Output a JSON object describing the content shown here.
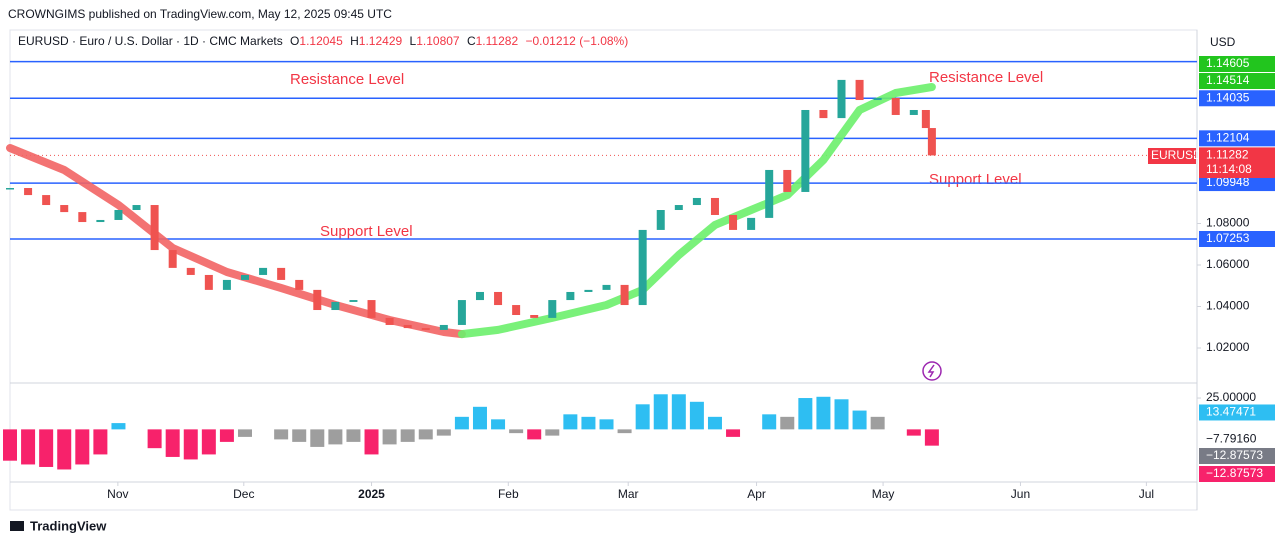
{
  "header": "CROWNGIMS published on TradingView.com, May 12, 2025 09:45 UTC",
  "footer": "TradingView",
  "chart_data": {
    "type": "candlestick",
    "symbol_line": {
      "name": "EURUSD · Euro / U.S. Dollar · 1D · CMC Markets",
      "o_label": "O",
      "open": 1.12045,
      "h_label": "H",
      "high": 1.12429,
      "l_label": "L",
      "low": 1.10807,
      "c_label": "C",
      "close": 1.11282,
      "change": "−0.01212 (−1.08%)"
    },
    "currency": "USD",
    "symbol_tag": "EURUSD",
    "countdown": "11:14:08",
    "annotations": [
      {
        "text": "Resistance Level"
      },
      {
        "text": "Resistance Level"
      },
      {
        "text": "Support Level"
      },
      {
        "text": "Support Level"
      }
    ],
    "xlim": [
      0,
      197
    ],
    "xticks": [
      {
        "value": 17.9,
        "label": "Nov"
      },
      {
        "value": 38.8,
        "label": "Dec"
      },
      {
        "value": 60,
        "label": "2025"
      },
      {
        "value": 82.7,
        "label": "Feb"
      },
      {
        "value": 102.6,
        "label": "Mar"
      },
      {
        "value": 123.9,
        "label": "Apr"
      },
      {
        "value": 144.9,
        "label": "May"
      },
      {
        "value": 167.7,
        "label": "Jun"
      },
      {
        "value": 188.6,
        "label": "Jul"
      }
    ],
    "ylim": [
      1.00313,
      1.17325
    ],
    "yticks": [
      {
        "value": 1.02,
        "label": "1.02000"
      },
      {
        "value": 1.04,
        "label": "1.04000"
      },
      {
        "value": 1.06,
        "label": "1.06000"
      },
      {
        "value": 1.08,
        "label": "1.08000"
      }
    ],
    "up_color": "#26a69a",
    "down_color": "#ef5350",
    "x": [
      0,
      3,
      6,
      9,
      12,
      15,
      18,
      21,
      24,
      27,
      30,
      33,
      36,
      39,
      42,
      45,
      48,
      51,
      54,
      57,
      60,
      63,
      66,
      69,
      72,
      75,
      78,
      81,
      84,
      87,
      90,
      93,
      96,
      99,
      102,
      105,
      108,
      111,
      114,
      117,
      120,
      123,
      126,
      129,
      132,
      135,
      138,
      141,
      144,
      147,
      150,
      152,
      153
    ],
    "close": [
      1.0971,
      1.0937,
      1.0889,
      1.0855,
      1.0807,
      1.0817,
      1.0865,
      1.0889,
      1.0672,
      1.0586,
      1.0552,
      1.048,
      1.0528,
      1.0552,
      1.0586,
      1.0528,
      1.048,
      1.0383,
      1.0422,
      1.0431,
      1.0345,
      1.0311,
      1.0296,
      1.0287,
      1.0311,
      1.0431,
      1.047,
      1.0407,
      1.0359,
      1.0345,
      1.0431,
      1.047,
      1.048,
      1.0504,
      1.0407,
      1.0769,
      1.0865,
      1.0889,
      1.0923,
      1.0841,
      1.0769,
      1.0827,
      1.1058,
      1.0952,
      1.1347,
      1.1308,
      1.1492,
      1.1395,
      1.1405,
      1.1323,
      1.1347,
      1.126,
      1.11282
    ],
    "series": [
      {
        "name": "MA falling",
        "color": "#f26464",
        "x": [
          0,
          9,
          18,
          27,
          36,
          45,
          54,
          63,
          72,
          75
        ],
        "values": [
          1.1164,
          1.1058,
          1.0889,
          1.0682,
          1.0566,
          1.0489,
          1.0407,
          1.0335,
          1.0277,
          1.0267
        ]
      },
      {
        "name": "MA rising",
        "color": "#6cf06c",
        "x": [
          75,
          81,
          90,
          99,
          105,
          111,
          117,
          123,
          129,
          135,
          141,
          147,
          153
        ],
        "values": [
          1.0267,
          1.0287,
          1.0345,
          1.0407,
          1.048,
          1.0648,
          1.0793,
          1.0865,
          1.0937,
          1.1106,
          1.1347,
          1.1429,
          1.1458
        ]
      }
    ],
    "levels": [
      1.158,
      1.14035,
      1.12104,
      1.09948,
      1.07253
    ],
    "level_color": "#2962ff",
    "price_labels": [
      {
        "value": 1.14605,
        "color": "#22c51e"
      },
      {
        "value": 1.14514,
        "color": "#22c51e"
      },
      {
        "value": 1.11282,
        "color": "#f23645"
      }
    ],
    "oscillator": {
      "ylim": [
        -42,
        37
      ],
      "yticks": [
        {
          "value": 25,
          "label": "25.00000"
        }
      ],
      "x": [
        0,
        3,
        6,
        9,
        12,
        15,
        18,
        21,
        24,
        27,
        30,
        33,
        36,
        39,
        42,
        45,
        48,
        51,
        54,
        57,
        60,
        63,
        66,
        69,
        72,
        75,
        78,
        81,
        84,
        87,
        90,
        93,
        96,
        99,
        102,
        105,
        108,
        111,
        114,
        117,
        120,
        123,
        126,
        129,
        132,
        135,
        138,
        141,
        144,
        147,
        150,
        153
      ],
      "values": [
        -25,
        -28,
        -30,
        -32,
        -28,
        -20,
        5,
        null,
        -15,
        -22,
        -24,
        -20,
        -10,
        -6,
        null,
        -8,
        -10,
        -14,
        -12,
        -10,
        -20,
        -12,
        -10,
        -8,
        -5,
        10,
        18,
        8,
        -3,
        -8,
        -5,
        12,
        10,
        8,
        -3,
        20,
        28,
        28,
        22,
        10,
        -6,
        null,
        12,
        10,
        25,
        26,
        24,
        15,
        10,
        null,
        -5,
        -13
      ],
      "colors": [
        "#f7226b",
        "#f7226b",
        "#f7226b",
        "#f7226b",
        "#f7226b",
        "#f7226b",
        "#2ebef2",
        "#9e9e9e",
        "#f7226b",
        "#f7226b",
        "#f7226b",
        "#f7226b",
        "#f7226b",
        "#9e9e9e",
        "#9e9e9e",
        "#9e9e9e",
        "#9e9e9e",
        "#9e9e9e",
        "#9e9e9e",
        "#9e9e9e",
        "#f7226b",
        "#9e9e9e",
        "#9e9e9e",
        "#9e9e9e",
        "#9e9e9e",
        "#2ebef2",
        "#2ebef2",
        "#2ebef2",
        "#9e9e9e",
        "#f7226b",
        "#9e9e9e",
        "#2ebef2",
        "#2ebef2",
        "#2ebef2",
        "#9e9e9e",
        "#2ebef2",
        "#2ebef2",
        "#2ebef2",
        "#2ebef2",
        "#2ebef2",
        "#f7226b",
        "#9e9e9e",
        "#2ebef2",
        "#9e9e9e",
        "#2ebef2",
        "#2ebef2",
        "#2ebef2",
        "#2ebef2",
        "#9e9e9e",
        "#9e9e9e",
        "#f7226b",
        "#f7226b"
      ],
      "labels": [
        {
          "value": 13.47471,
          "color": "#2ebef2"
        },
        {
          "value": -7.7916,
          "label": "−7.79160",
          "color": null
        },
        {
          "value": -12.87573,
          "label": "−12.87573",
          "color": "#787b86"
        },
        {
          "value": -12.87573,
          "label": "−12.87573",
          "color": "#f7226b"
        }
      ]
    }
  }
}
